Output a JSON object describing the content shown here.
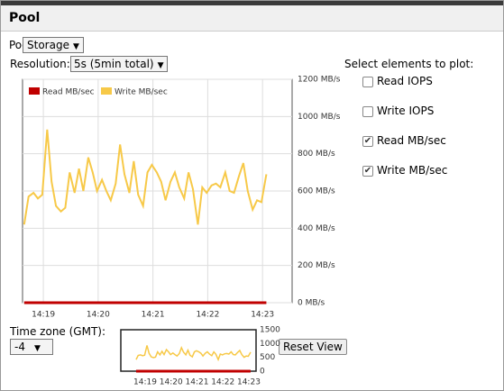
{
  "header": {
    "title": "Pool"
  },
  "pool": {
    "label": "Pool:",
    "selected": "Storage"
  },
  "resolution": {
    "label": "Resolution:",
    "selected": "5s (5min total)"
  },
  "plot_elements": {
    "title": "Select elements to plot:",
    "options": [
      {
        "label": "Read IOPS",
        "checked": false
      },
      {
        "label": "Write IOPS",
        "checked": false
      },
      {
        "label": "Read MB/sec",
        "checked": true
      },
      {
        "label": "Write MB/sec",
        "checked": true
      }
    ]
  },
  "timezone": {
    "label": "Time zone (GMT):",
    "selected": "-4"
  },
  "reset_button": "Reset View",
  "chart_data": [
    {
      "type": "line",
      "grid": true,
      "legend": "top-left",
      "x": [
        858.65,
        858.73,
        858.82,
        858.9,
        858.98,
        859.07,
        859.15,
        859.23,
        859.32,
        859.4,
        859.48,
        859.57,
        859.65,
        859.73,
        859.82,
        859.9,
        859.98,
        860.07,
        860.15,
        860.23,
        860.32,
        860.4,
        860.48,
        860.57,
        860.65,
        860.73,
        860.82,
        860.9,
        860.98,
        861.07,
        861.15,
        861.23,
        861.32,
        861.4,
        861.48,
        861.57,
        861.65,
        861.73,
        861.82,
        861.9,
        861.98,
        862.07,
        862.15,
        862.23,
        862.32,
        862.4,
        862.48,
        862.57,
        862.65,
        862.73,
        862.82,
        862.9,
        862.98,
        863.07
      ],
      "series": [
        {
          "name": "Read MB/sec",
          "color": "#c00000",
          "values": [
            0,
            0,
            0,
            0,
            0,
            0,
            0,
            0,
            0,
            0,
            0,
            0,
            0,
            0,
            0,
            0,
            0,
            0,
            0,
            0,
            0,
            0,
            0,
            0,
            0,
            0,
            0,
            0,
            0,
            0,
            0,
            0,
            0,
            0,
            0,
            0,
            0,
            0,
            0,
            0,
            0,
            0,
            0,
            0,
            0,
            0,
            0,
            0,
            0,
            0,
            0,
            0,
            0,
            0
          ]
        },
        {
          "name": "Write MB/sec",
          "color": "#f7c948",
          "values": [
            420,
            570,
            590,
            560,
            580,
            930,
            650,
            520,
            490,
            510,
            700,
            590,
            720,
            600,
            780,
            700,
            600,
            660,
            600,
            550,
            640,
            850,
            690,
            590,
            760,
            580,
            520,
            700,
            740,
            700,
            650,
            550,
            650,
            700,
            620,
            560,
            700,
            610,
            420,
            620,
            590,
            630,
            640,
            620,
            700,
            600,
            590,
            680,
            750,
            600,
            500,
            550,
            540,
            690
          ]
        }
      ],
      "xlim": [
        858.62,
        863.54
      ],
      "xticks": [
        {
          "value": 859,
          "label": "14:19"
        },
        {
          "value": 860,
          "label": "14:20"
        },
        {
          "value": 861,
          "label": "14:21"
        },
        {
          "value": 862,
          "label": "14:22"
        },
        {
          "value": 863,
          "label": "14:23"
        }
      ],
      "ylim": [
        0,
        1200
      ],
      "yticks": [
        {
          "value": 0,
          "label": "0 MB/s"
        },
        {
          "value": 200,
          "label": "200 MB/s"
        },
        {
          "value": 400,
          "label": "400 MB/s"
        },
        {
          "value": 600,
          "label": "600 MB/s"
        },
        {
          "value": 800,
          "label": "800 MB/s"
        },
        {
          "value": 1000,
          "label": "1000 MB/s"
        },
        {
          "value": 1200,
          "label": "1200 MB/s"
        }
      ]
    },
    {
      "type": "navigator",
      "xlim": [
        858.06,
        863.28
      ],
      "xticks": [
        {
          "value": 859,
          "label": "14:19"
        },
        {
          "value": 860,
          "label": "14:20"
        },
        {
          "value": 861,
          "label": "14:21"
        },
        {
          "value": 862,
          "label": "14:22"
        },
        {
          "value": 863,
          "label": "14:23"
        }
      ],
      "ylim": [
        0,
        1500
      ],
      "yticks": [
        0,
        500,
        1000,
        1500
      ]
    }
  ]
}
